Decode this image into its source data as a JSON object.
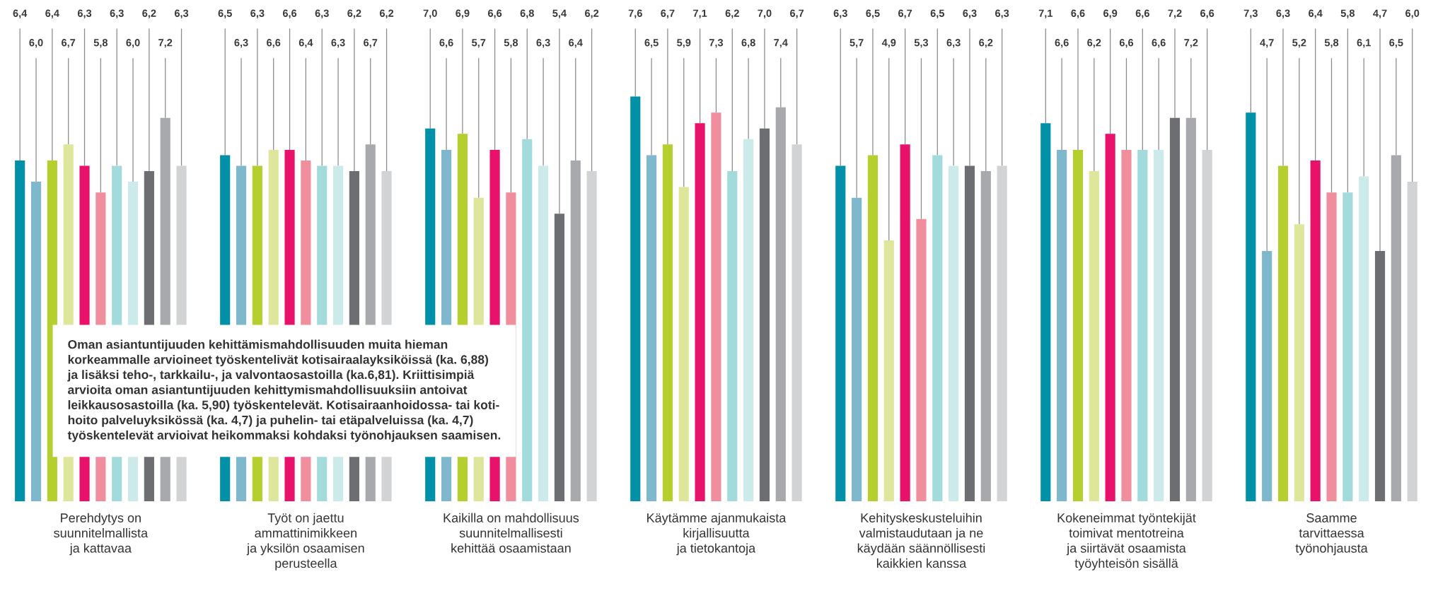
{
  "chart_data": {
    "type": "bar",
    "tick_labels": "x",
    "categories": [
      "Perehdytys on\nsuunnitelmallista\nja kattavaa",
      "Työt on jaettu\nammattinimikkeen\nja yksilön osaamisen\nperusteella",
      "Kaikilla on mahdollisuus\nsuunnitelmallisesti\nkehittää osaamistaan",
      "Käytämme ajanmukaista\nkirjallisuutta\nja tietokantoja",
      "Kehityskeskusteluihin\nvalmistaudutaan ja ne\nkäydään säännöllisesti\nkaikkien kanssa",
      "Kokeneimmat työntekijät\ntoimivat mentotreina\nja siirtävät osaamista\ntyöyhteisön sisällä",
      "Saamme\ntarvittaessa\ntyönohjausta"
    ],
    "series": [
      {
        "color": "#0090a8",
        "values": [
          6.4,
          6.5,
          7.0,
          7.6,
          6.3,
          7.1,
          7.3
        ],
        "value_labels": [
          "6,4",
          "6,5",
          "7,0",
          "7,6",
          "6,3",
          "7,1",
          "7,3"
        ]
      },
      {
        "color": "#7fb8cc",
        "values": [
          6.0,
          6.3,
          6.6,
          6.5,
          5.7,
          6.6,
          4.7
        ],
        "value_labels": [
          "6,0",
          "6,3",
          "6,6",
          "6,5",
          "5,7",
          "6,6",
          "4,7"
        ]
      },
      {
        "color": "#b5cf2f",
        "values": [
          6.4,
          6.3,
          6.9,
          6.7,
          6.5,
          6.6,
          6.3
        ],
        "value_labels": [
          "6,4",
          "6,3",
          "6,9",
          "6,7",
          "6,5",
          "6,6",
          "6,3"
        ]
      },
      {
        "color": "#dde69a",
        "values": [
          6.7,
          6.6,
          5.7,
          5.9,
          4.9,
          6.2,
          5.2
        ],
        "value_labels": [
          "6,7",
          "6,6",
          "5,7",
          "5,9",
          "4,9",
          "6,2",
          "5,2"
        ]
      },
      {
        "color": "#e8126a",
        "values": [
          6.3,
          6.6,
          6.6,
          7.1,
          6.7,
          6.9,
          6.4
        ],
        "value_labels": [
          "6,3",
          "6,6",
          "6,6",
          "7,1",
          "6,7",
          "6,9",
          "6,4"
        ]
      },
      {
        "color": "#f08e9e",
        "values": [
          5.8,
          6.4,
          5.8,
          7.3,
          5.3,
          6.6,
          5.8
        ],
        "value_labels": [
          "5,8",
          "6,4",
          "5,8",
          "7,3",
          "5,3",
          "6,6",
          "5,8"
        ]
      },
      {
        "color": "#a3dadb",
        "values": [
          6.3,
          6.3,
          6.8,
          6.2,
          6.5,
          6.6,
          5.8
        ],
        "value_labels": [
          "6,3",
          "6,3",
          "6,8",
          "6,2",
          "6,5",
          "6,6",
          "5,8"
        ]
      },
      {
        "color": "#cdeaea",
        "values": [
          6.0,
          6.3,
          6.3,
          6.8,
          6.3,
          6.6,
          6.1
        ],
        "value_labels": [
          "6,0",
          "6,3",
          "6,3",
          "6,8",
          "6,3",
          "6,6",
          "6,1"
        ]
      },
      {
        "color": "#6d6e71",
        "values": [
          6.2,
          6.2,
          5.4,
          7.0,
          6.3,
          7.2,
          4.7
        ],
        "value_labels": [
          "6,2",
          "6,2",
          "5,4",
          "7,0",
          "6,3",
          "7,2",
          "4,7"
        ]
      },
      {
        "color": "#a7a9ac",
        "values": [
          7.2,
          6.7,
          6.4,
          7.4,
          6.2,
          7.2,
          6.5
        ],
        "value_labels": [
          "7,2",
          "6,7",
          "6,4",
          "7,4",
          "6,2",
          "7,2",
          "6,5"
        ]
      },
      {
        "color": "#d1d3d4",
        "values": [
          6.3,
          6.2,
          6.2,
          6.7,
          6.3,
          6.6,
          6.0
        ],
        "value_labels": [
          "6,3",
          "6,2",
          "6,2",
          "6,7",
          "6,3",
          "6,6",
          "6,0"
        ]
      }
    ],
    "annotations": [
      "Oman asiantuntijuuden kehittämismahdollisuuden muita hieman\nkorkeammalle arvioineet työskentelivät kotisairaalayksiköissä (ka. 6,88)\nja lisäksi teho-, tarkkailu-, ja valvontaosastoilla (ka.6,81). Kriittisimpiä\narvioita oman asiantuntijuuden kehittymismahdollisuuksiin antoivat\nleikkausosastoilla (ka. 5,90) työskentelevät. Kotisairaanhoidossa- tai koti-\nhoito palveluyksikössä (ka. 4,7) ja puhelin- tai etäpalveluissa (ka. 4,7)\ntyöskentelevät arvioivat heikommaksi kohdaksi työnohjauksen saamisen."
    ]
  }
}
